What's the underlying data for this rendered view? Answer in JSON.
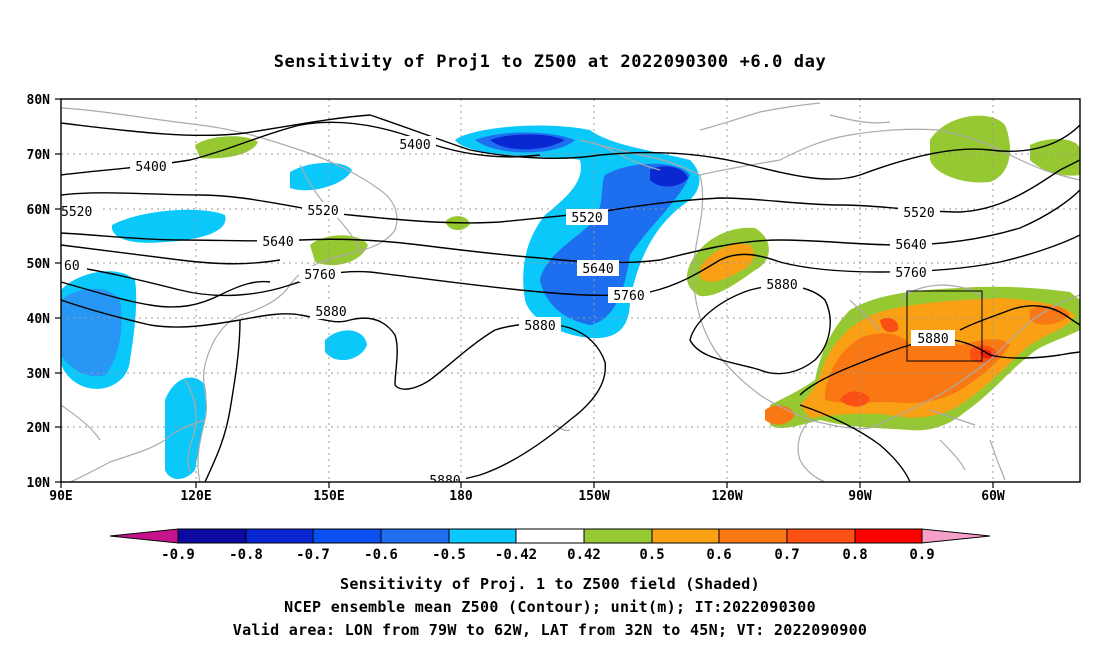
{
  "title": "Sensitivity of Proj1 to Z500 at 2022090300 +6.0 day",
  "map": {
    "lon_ticks": [
      "90E",
      "120E",
      "150E",
      "180",
      "150W",
      "120W",
      "90W",
      "60W"
    ],
    "lat_ticks": [
      "80N",
      "70N",
      "60N",
      "50N",
      "40N",
      "30N",
      "20N",
      "10N"
    ],
    "contour_labels": [
      {
        "text": "5400",
        "id": "5400-west"
      },
      {
        "text": "5400",
        "id": "5400-pacific"
      },
      {
        "text": "5520",
        "id": "5520-left-edge"
      },
      {
        "text": "5520",
        "id": "5520-asia"
      },
      {
        "text": "5520",
        "id": "5520-pacific"
      },
      {
        "text": "5520",
        "id": "5520-atlantic"
      },
      {
        "text": "5640",
        "id": "5640-asia"
      },
      {
        "text": "5640",
        "id": "5640-pacific"
      },
      {
        "text": "5640",
        "id": "5640-atlantic"
      },
      {
        "text": "5760",
        "id": "5760-asia"
      },
      {
        "text": "5760",
        "id": "5760-pacific"
      },
      {
        "text": "5760",
        "id": "5760-atlantic"
      },
      {
        "text": "5880",
        "id": "5880-asia"
      },
      {
        "text": "5880",
        "id": "5880-pacific"
      },
      {
        "text": "5880",
        "id": "5880-namerica"
      },
      {
        "text": "5880",
        "id": "5880-box"
      },
      {
        "text": "5880",
        "id": "5880-south"
      },
      {
        "text": "60",
        "id": "60-left-edge"
      }
    ],
    "valid_box": {
      "lon_from": "79W",
      "lon_to": "62W",
      "lat_from": "32N",
      "lat_to": "45N"
    }
  },
  "colorbar": {
    "labels": [
      "-0.9",
      "-0.8",
      "-0.7",
      "-0.6",
      "-0.5",
      "-0.42",
      "0.42",
      "0.5",
      "0.6",
      "0.7",
      "0.8",
      "0.9"
    ],
    "colors": {
      "lower_arrow": "#c8148c",
      "blue1": "#0a0aa0",
      "blue2": "#0a28d2",
      "blue3": "#0a50f0",
      "blue4": "#1e6ef0",
      "blue5": "#2896f5",
      "cyan": "#0ac8fa",
      "white": "#ffffff",
      "green": "#96c832",
      "orange1": "#faa014",
      "orange2": "#fa7814",
      "orange3": "#fa5014",
      "red": "#f51e0a",
      "red2": "#ff0000",
      "upper_arrow": "#f5a0c8"
    }
  },
  "caption": {
    "line1": "Sensitivity of Proj. 1 to Z500 field (Shaded)",
    "line2": "NCEP ensemble mean Z500 (Contour); unit(m); IT:2022090300",
    "line3": "Valid area: LON from 79W to 62W, LAT from 32N to 45N; VT: 2022090900"
  }
}
